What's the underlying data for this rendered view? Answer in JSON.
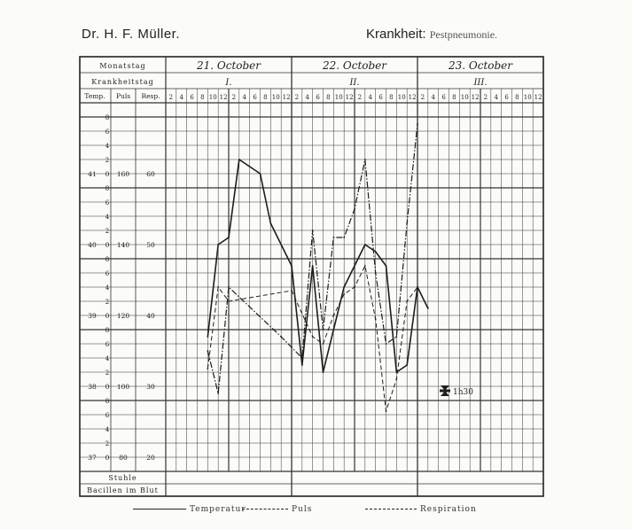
{
  "header": {
    "author": "Dr. H. F. Müller.",
    "diagnosis_label": "Krankheit:",
    "diagnosis_value": "Pestpneumonie."
  },
  "table": {
    "row_date_label": "Monatstag",
    "row_day_label": "Krankheitstag",
    "col_temp": "Temp.",
    "col_puls": "Puls",
    "col_resp": "Resp.",
    "row_stuhle": "Stuhle",
    "row_bacillen": "Bacillen im Blut",
    "dates": [
      "21. October",
      "22. October",
      "23. October"
    ],
    "days": [
      "I.",
      "II.",
      "III."
    ],
    "hours": [
      "2",
      "4",
      "6",
      "8",
      "10",
      "12",
      "2",
      "4",
      "6",
      "8",
      "10",
      "12"
    ],
    "temp_ticks": [
      "41",
      "40",
      "39",
      "38",
      "37"
    ],
    "minor_ticks": [
      "8",
      "6",
      "4",
      "2"
    ],
    "puls_ticks": [
      "160",
      "140",
      "120",
      "100",
      "80"
    ],
    "resp_ticks": [
      "60",
      "50",
      "40",
      "30",
      "20"
    ],
    "death_time": "1h30"
  },
  "legend": {
    "temperature": "Temperatur",
    "pulse": "Puls",
    "respiration": "Respiration"
  },
  "chart_data": {
    "type": "line",
    "x_unit": "hour slot from 21. October 2 o'clock (one slot = 2 hours)",
    "ylabel_temp": "Temp.",
    "ylabel_puls": "Puls",
    "ylabel_resp": "Resp.",
    "ylim_temp": [
      37,
      41.6
    ],
    "ylim_puls": [
      80,
      172
    ],
    "ylim_resp": [
      20,
      66
    ],
    "series": [
      {
        "name": "Temperatur",
        "axis": "temp",
        "x": [
          4,
          5,
          6,
          7,
          9,
          10,
          12,
          13,
          14,
          15,
          16,
          17,
          19,
          20,
          21,
          22,
          23,
          24,
          25
        ],
        "y": [
          38.3,
          39.6,
          39.7,
          40.8,
          40.6,
          39.9,
          39.3,
          37.9,
          39.3,
          37.8,
          38.4,
          39.0,
          39.6,
          39.5,
          39.3,
          37.8,
          37.9,
          39.0,
          38.7
        ]
      },
      {
        "name": "Puls",
        "axis": "puls",
        "x": [
          4,
          5,
          6,
          12,
          14,
          15,
          16,
          17,
          18,
          19,
          20,
          21,
          22,
          23,
          24
        ],
        "y": [
          97,
          120,
          116,
          119,
          106,
          104,
          112,
          118,
          120,
          126,
          111,
          85,
          94,
          116,
          120
        ]
      },
      {
        "name": "Respiration",
        "axis": "resp",
        "x": [
          4,
          5,
          6,
          11,
          13,
          14,
          15,
          16,
          17,
          18,
          19,
          20,
          21,
          22,
          23,
          24
        ],
        "y": [
          31,
          25,
          40,
          33,
          30,
          48,
          34,
          47,
          47,
          51,
          58,
          42,
          32,
          33,
          49,
          63
        ]
      }
    ]
  }
}
